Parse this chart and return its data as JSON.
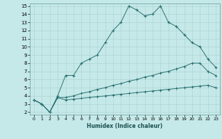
{
  "xlabel": "Humidex (Indice chaleur)",
  "bg_color": "#c5e8e8",
  "grid_color": "#b0d4d4",
  "line_color": "#2a7070",
  "xlim": [
    -0.5,
    23.5
  ],
  "ylim": [
    1.7,
    15.3
  ],
  "xticks": [
    0,
    1,
    2,
    3,
    4,
    5,
    6,
    7,
    8,
    9,
    10,
    11,
    12,
    13,
    14,
    15,
    16,
    17,
    18,
    19,
    20,
    21,
    22,
    23
  ],
  "yticks": [
    2,
    3,
    4,
    5,
    6,
    7,
    8,
    9,
    10,
    11,
    12,
    13,
    14,
    15
  ],
  "line1_x": [
    0,
    1,
    2,
    3,
    4,
    5,
    6,
    7,
    8,
    9,
    10,
    11,
    12,
    13,
    14,
    15,
    16,
    17,
    18,
    19,
    20,
    21,
    22,
    23
  ],
  "line1_y": [
    3.5,
    3.0,
    2.0,
    4.0,
    6.5,
    6.5,
    8.0,
    8.5,
    9.0,
    10.5,
    12.0,
    13.0,
    15.0,
    14.5,
    13.8,
    14.0,
    15.0,
    13.0,
    12.5,
    11.5,
    10.5,
    10.0,
    8.5,
    7.5
  ],
  "line2_x": [
    0,
    1,
    2,
    3,
    4,
    5,
    6,
    7,
    8,
    9,
    10,
    11,
    12,
    13,
    14,
    15,
    16,
    17,
    18,
    19,
    20,
    21,
    22,
    23
  ],
  "line2_y": [
    3.5,
    3.0,
    2.0,
    3.8,
    3.8,
    4.0,
    4.3,
    4.5,
    4.8,
    5.0,
    5.3,
    5.5,
    5.8,
    6.0,
    6.3,
    6.5,
    6.8,
    7.0,
    7.3,
    7.6,
    8.0,
    8.0,
    7.0,
    6.5
  ],
  "line3_x": [
    0,
    1,
    2,
    3,
    4,
    5,
    6,
    7,
    8,
    9,
    10,
    11,
    12,
    13,
    14,
    15,
    16,
    17,
    18,
    19,
    20,
    21,
    22,
    23
  ],
  "line3_y": [
    3.5,
    3.0,
    2.0,
    3.8,
    3.5,
    3.6,
    3.7,
    3.8,
    3.9,
    4.0,
    4.1,
    4.2,
    4.3,
    4.4,
    4.5,
    4.6,
    4.7,
    4.8,
    4.9,
    5.0,
    5.1,
    5.2,
    5.3,
    5.0
  ]
}
